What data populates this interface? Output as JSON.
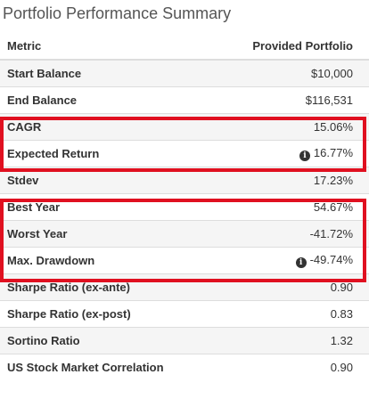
{
  "panel": {
    "title": "Portfolio Performance Summary"
  },
  "table": {
    "headers": {
      "metric": "Metric",
      "value": "Provided Portfolio"
    },
    "rows": [
      {
        "metric": "Start Balance",
        "value": "$10,000",
        "info": false
      },
      {
        "metric": "End Balance",
        "value": "$116,531",
        "info": false
      },
      {
        "metric": "CAGR",
        "value": "15.06%",
        "info": false
      },
      {
        "metric": "Expected Return",
        "value": "16.77%",
        "info": true
      },
      {
        "metric": "Stdev",
        "value": "17.23%",
        "info": false
      },
      {
        "metric": "Best Year",
        "value": "54.67%",
        "info": false
      },
      {
        "metric": "Worst Year",
        "value": "-41.72%",
        "info": false
      },
      {
        "metric": "Max. Drawdown",
        "value": "-49.74%",
        "info": true
      },
      {
        "metric": "Sharpe Ratio (ex-ante)",
        "value": "0.90",
        "info": false
      },
      {
        "metric": "Sharpe Ratio (ex-post)",
        "value": "0.83",
        "info": false
      },
      {
        "metric": "Sortino Ratio",
        "value": "1.32",
        "info": false
      },
      {
        "metric": "US Stock Market Correlation",
        "value": "0.90",
        "info": false
      }
    ]
  },
  "icons": {
    "info": "info-circle-icon"
  },
  "colors": {
    "highlight": "#e01020",
    "stripe": "#f5f5f5"
  }
}
